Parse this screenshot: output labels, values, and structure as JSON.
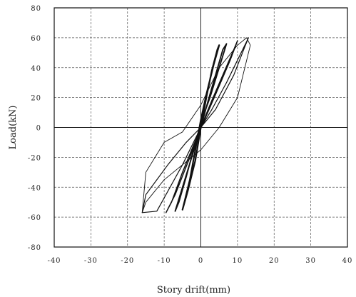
{
  "chart_data": {
    "type": "line",
    "title": "",
    "xlabel": "Story drift(mm)",
    "ylabel": "Load(kN)",
    "xlim": [
      -40,
      40
    ],
    "ylim": [
      -80,
      80
    ],
    "x_ticks": [
      "-40",
      "-30",
      "-20",
      "-10",
      "0",
      "10",
      "20",
      "30",
      "40"
    ],
    "y_ticks": [
      "80",
      "60",
      "40",
      "20",
      "0",
      "-20",
      "-40",
      "-60",
      "-80"
    ],
    "grid": true,
    "legend": "none",
    "line_color": "#111111",
    "series": [
      {
        "x": [
          0,
          1.5,
          3,
          4.5,
          5,
          3.5,
          1.5,
          0,
          -1.5,
          -3,
          -4.5,
          -5,
          -3.5,
          -1.5,
          0
        ],
        "y": [
          0,
          20,
          38,
          52,
          55,
          42,
          22,
          5,
          -15,
          -35,
          -50,
          -55,
          -42,
          -22,
          0
        ]
      },
      {
        "x": [
          0,
          2,
          4,
          6,
          7,
          5,
          2.5,
          0,
          -2,
          -4,
          -6,
          -7,
          -5,
          -2.5,
          0
        ],
        "y": [
          0,
          18,
          35,
          52,
          56,
          40,
          20,
          3,
          -15,
          -33,
          -50,
          -56,
          -40,
          -20,
          0
        ]
      },
      {
        "x": [
          0,
          3,
          6,
          9,
          10,
          8,
          4,
          1,
          -2,
          -5,
          -8,
          -9.5,
          -7,
          -3,
          0
        ],
        "y": [
          0,
          18,
          35,
          52,
          58,
          45,
          22,
          5,
          -12,
          -30,
          -50,
          -57,
          -45,
          -20,
          0
        ]
      },
      {
        "x": [
          0,
          3,
          7,
          11,
          13,
          12,
          9,
          4,
          0,
          -4,
          -9,
          -15,
          -16,
          -12,
          -5,
          0
        ],
        "y": [
          0,
          12,
          30,
          50,
          60,
          54,
          35,
          12,
          0,
          -10,
          -25,
          -45,
          -57,
          -56,
          -25,
          0
        ]
      },
      {
        "x": [
          -16,
          -15,
          -10,
          -5,
          0,
          5,
          10,
          13.5,
          12.5,
          10,
          5,
          0,
          -5,
          -10,
          -15,
          -16
        ],
        "y": [
          -57,
          -50,
          -35,
          -25,
          -15,
          0,
          20,
          55,
          60,
          55,
          40,
          15,
          -3,
          -10,
          -30,
          -57
        ]
      }
    ]
  }
}
